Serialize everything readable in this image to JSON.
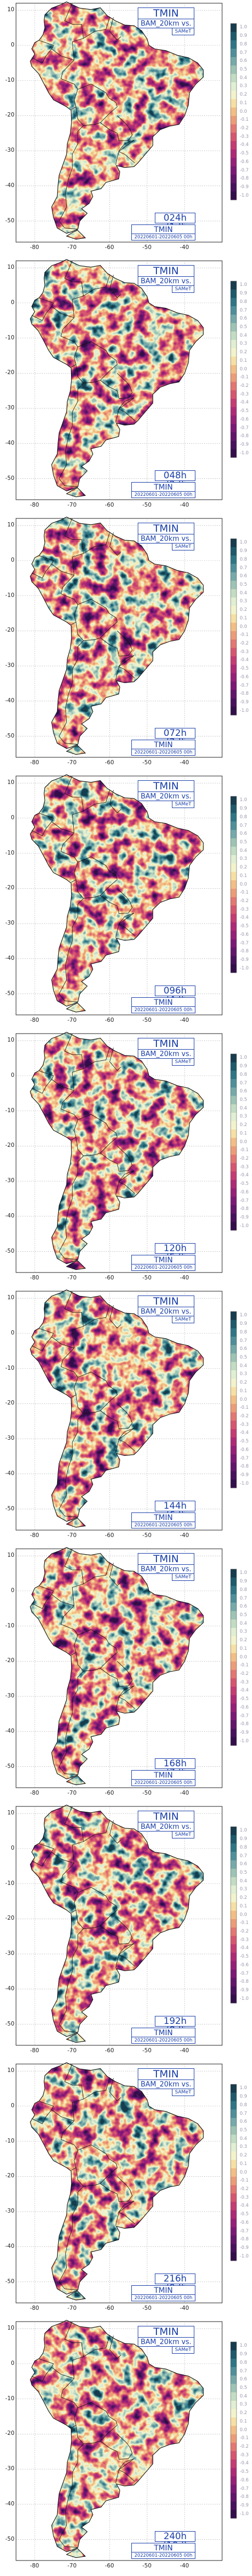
{
  "title": "TMIN SCORR",
  "model": "BAM_20km vs.",
  "reference": "SAMeT",
  "period": "20220601-20220605 00h",
  "lat_ticks": [
    "10",
    "0",
    "-10",
    "-20",
    "-30",
    "-40",
    "-50"
  ],
  "lon_ticks": [
    "-80",
    "-70",
    "-60",
    "-50",
    "-40"
  ],
  "colorbar": {
    "labels": [
      "1.0",
      "0.9",
      "0.8",
      "0.7",
      "0.6",
      "0.5",
      "0.4",
      "0.3",
      "0.2",
      "0.1",
      "0.0",
      "-0.1",
      "-0.2",
      "-0.3",
      "-0.4",
      "-0.5",
      "-0.6",
      "-0.7",
      "-0.8",
      "-0.9",
      "-1.0"
    ],
    "colors": [
      "#173c4d",
      "#1e5a6a",
      "#2e7684",
      "#4f8f99",
      "#76a9a9",
      "#9cc3b3",
      "#c2dcc3",
      "#e0eed2",
      "#f2f3cc",
      "#f6dfa3",
      "#f2be85",
      "#ec9c78",
      "#e37771",
      "#d5566f",
      "#c43c72",
      "#ae2a75",
      "#952077",
      "#7b1974",
      "#61166a",
      "#47125c",
      "#330f4a"
    ]
  },
  "panels": [
    {
      "lead": "024h (1d)",
      "stat": "TMIN SCORR=0.16"
    },
    {
      "lead": "048h (2d)",
      "stat": "TMIN SCORR=0.21"
    },
    {
      "lead": "072h (3d)",
      "stat": "TMIN SCORR=0.2"
    },
    {
      "lead": "096h (4d)",
      "stat": "TMIN SCORR=0.15"
    },
    {
      "lead": "120h (5d)",
      "stat": "TMIN SCORR=0.22"
    },
    {
      "lead": "144h (6d)",
      "stat": "TMIN SCORR=0.21"
    },
    {
      "lead": "168h (7d)",
      "stat": "TMIN SCORR=0.17"
    },
    {
      "lead": "192h (8d)",
      "stat": "TMIN SCORR=0.12"
    },
    {
      "lead": "216h (9d)",
      "stat": "TMIN SCORR=0.07"
    },
    {
      "lead": "240h (10d)",
      "stat": "TMIN SCORR=0.1"
    }
  ]
}
